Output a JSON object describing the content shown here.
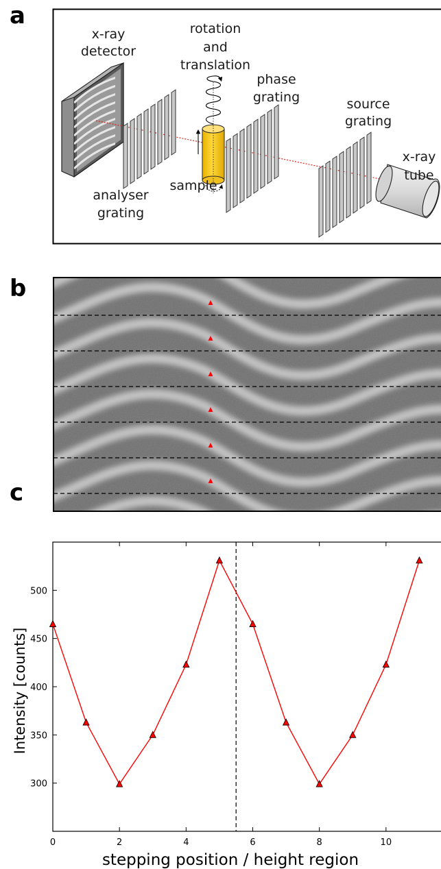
{
  "panel_a": {
    "letter": "a",
    "labels": {
      "detector_line1": "x-ray",
      "detector_line2": "detector",
      "rotation_line1": "rotation",
      "rotation_line2": "and",
      "rotation_line3": "translation",
      "phase_line1": "phase",
      "phase_line2": "grating",
      "source_line1": "source",
      "source_line2": "grating",
      "tube_line1": "x-ray",
      "tube_line2": "tube",
      "analyser_line1": "analyser",
      "analyser_line2": "grating",
      "sample": "sample"
    },
    "colors": {
      "sample": "#f5c518",
      "beam": "#e0231a",
      "grating": "#c8c8c8"
    }
  },
  "panel_b": {
    "letter": "b",
    "marker_color": "#ff0000",
    "marker_count": 6,
    "dashed_line_count": 6
  },
  "panel_c": {
    "letter": "c",
    "chart_data": {
      "type": "line",
      "xlabel": "stepping position / height region",
      "ylabel": "Intensity [counts]",
      "xlim": [
        0,
        12
      ],
      "ylim": [
        250,
        550
      ],
      "xticks": [
        0,
        2,
        4,
        6,
        8,
        10
      ],
      "yticks": [
        300,
        350,
        400,
        450,
        500
      ],
      "series": [
        {
          "x": [
            0,
            1,
            2,
            3,
            4,
            5,
            6,
            7,
            8,
            9,
            10,
            11
          ],
          "values": [
            465,
            363,
            299,
            350,
            423,
            531,
            465,
            363,
            299,
            350,
            423,
            531
          ],
          "color": "#ff0000",
          "marker": "triangle"
        }
      ],
      "vline_x": 5.5,
      "grid": false
    }
  }
}
